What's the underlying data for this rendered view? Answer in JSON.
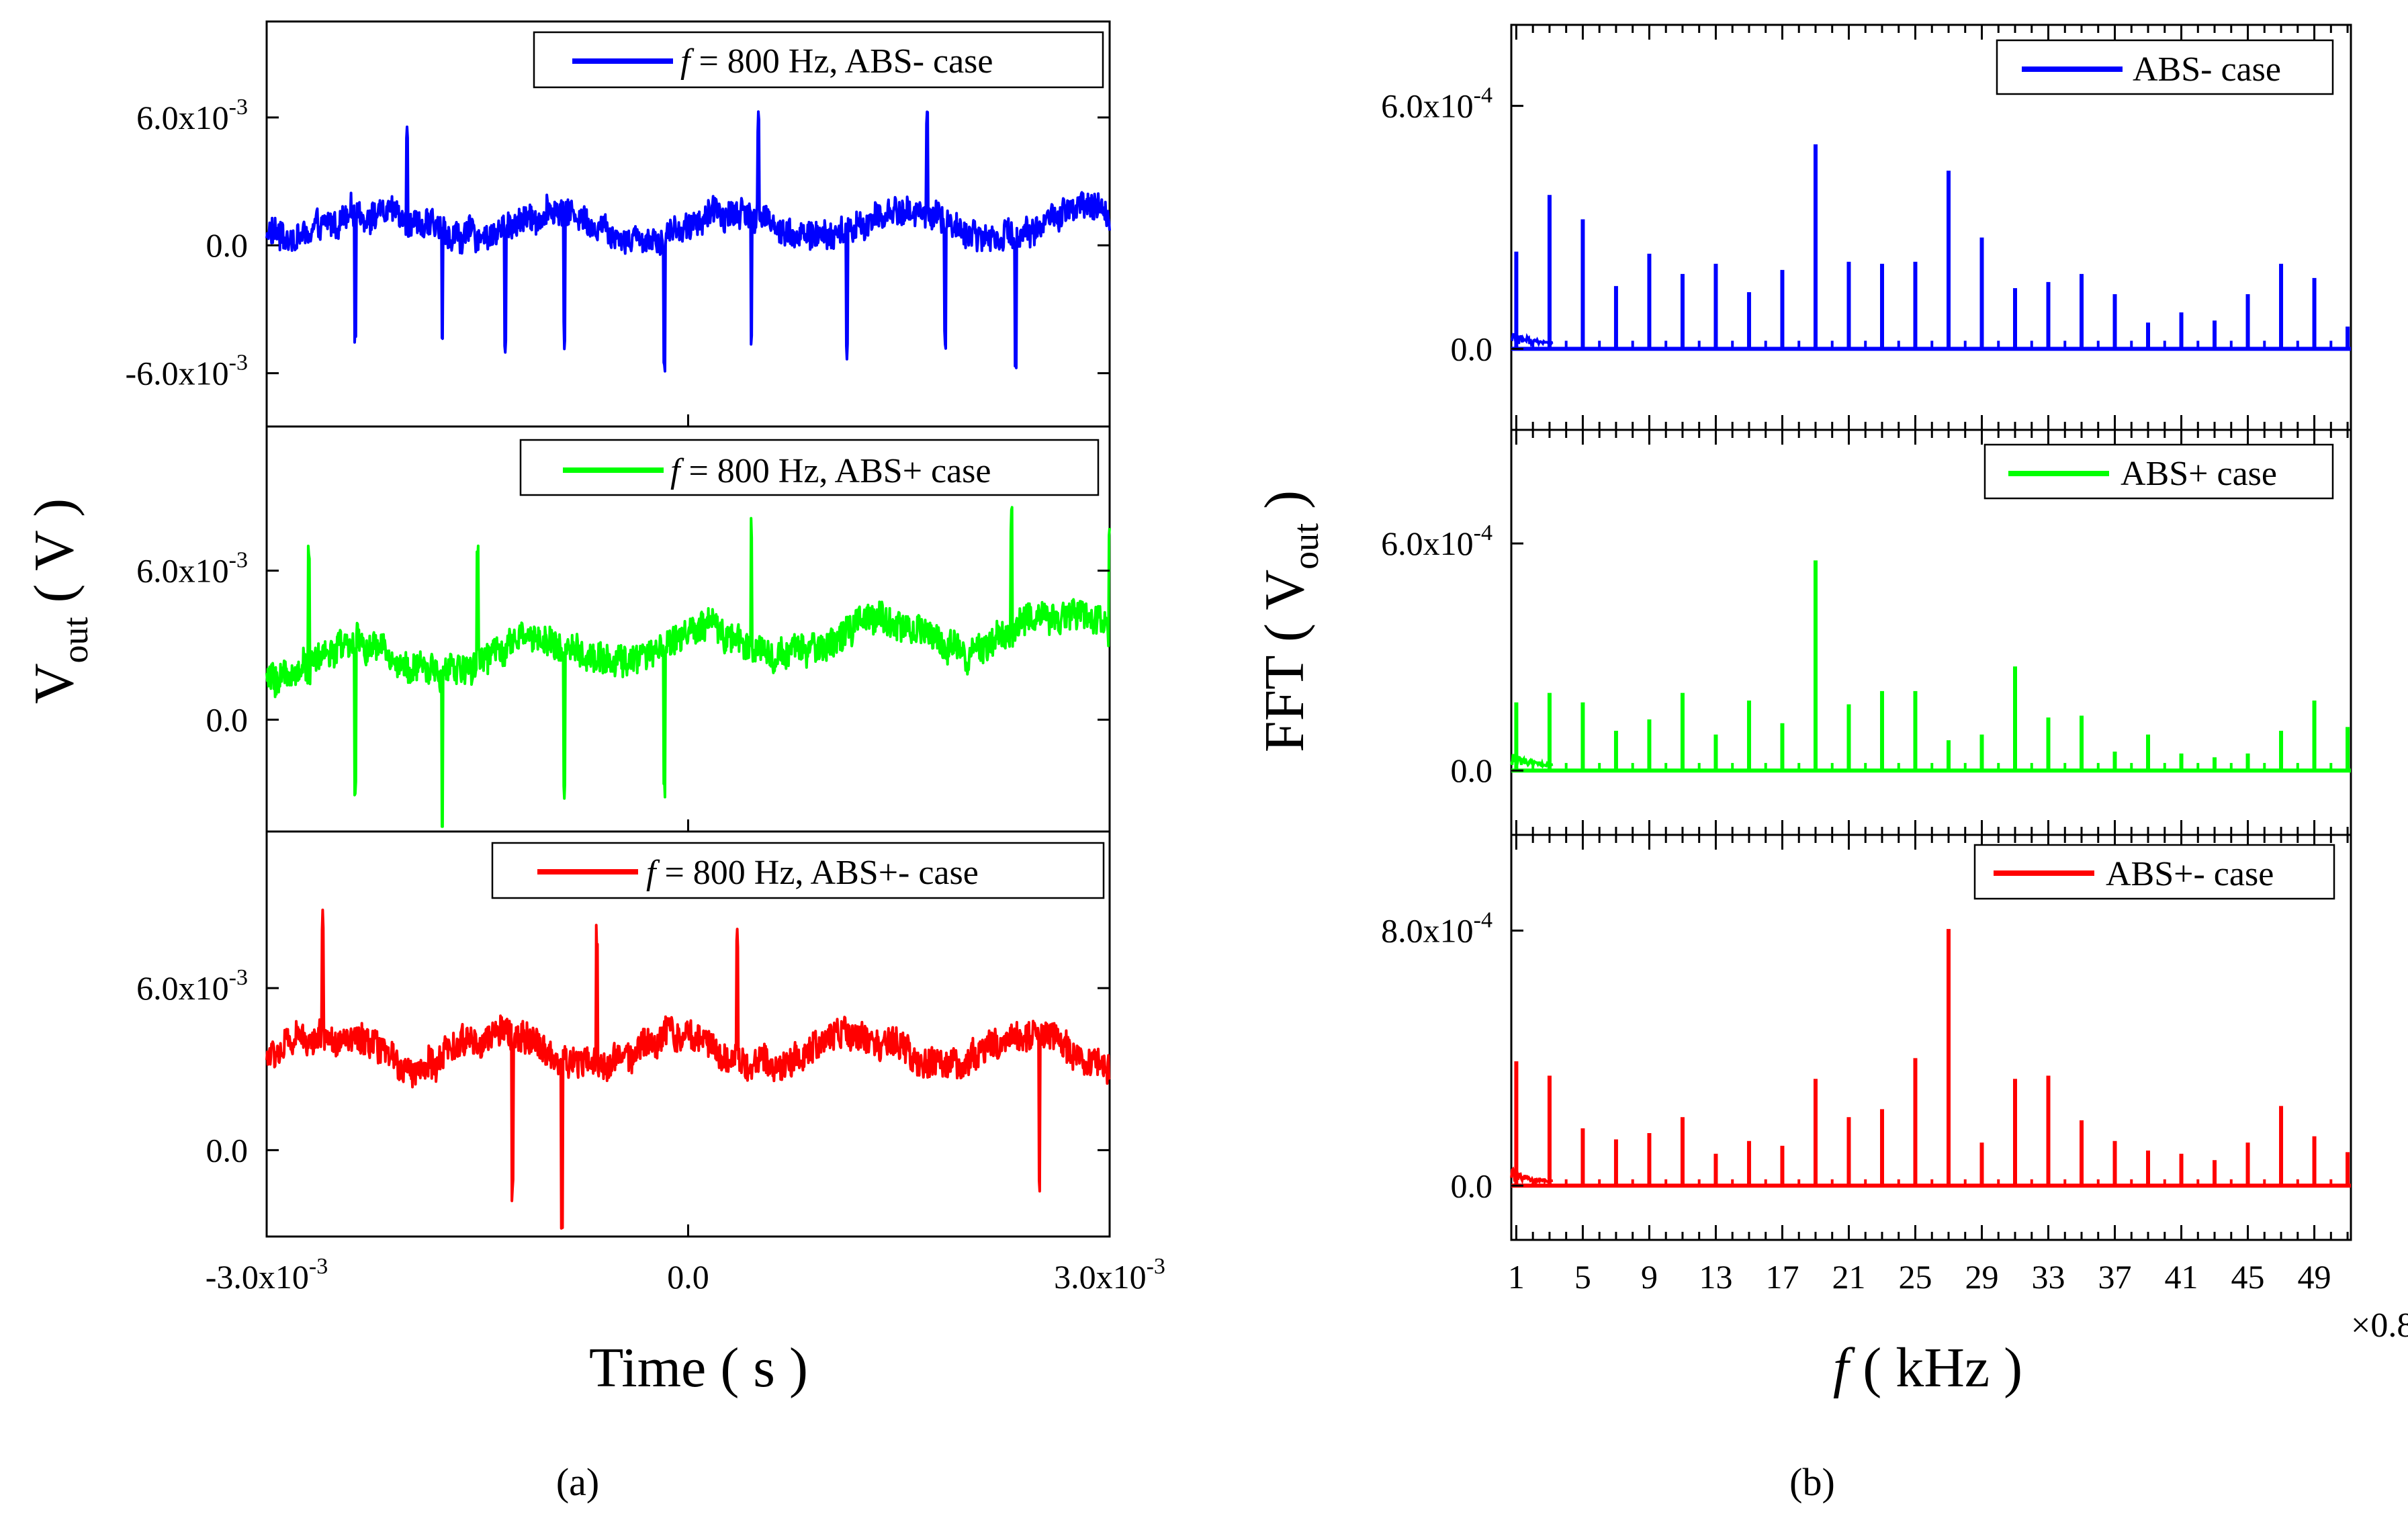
{
  "figure": {
    "caption_a": "(a)",
    "caption_b": "(b)"
  },
  "chart_data": [
    {
      "type": "line",
      "panel": "a",
      "xlabel": "Time ( s )",
      "ylabel": "V_out ( V )",
      "x_ticks": [
        -0.003,
        0.0,
        0.003
      ],
      "x_tick_labels": [
        "-3.0x10-3",
        "0.0",
        "3.0x10-3"
      ],
      "xlim": [
        -0.003,
        0.003
      ],
      "subplots": [
        {
          "legend": "f = 800 Hz, ABS- case",
          "legend_parts": {
            "italic": "f",
            "rest": " = 800 Hz, ABS- case"
          },
          "color": "#0000ff",
          "ylim": [
            -0.0085,
            0.0105
          ],
          "y_ticks": [
            -0.006,
            0.0,
            0.006
          ],
          "y_tick_labels": [
            "-6.0x10-3",
            "0.0",
            "6.0x10-3"
          ],
          "signal": {
            "baseline": 0.001,
            "drift": 0.0,
            "noise_amplitude": 0.0014,
            "dips": [
              -0.00237,
              -0.00175,
              -0.0013,
              -0.00088,
              -0.00017,
              0.00045,
              0.00113,
              0.00183,
              0.00233
            ],
            "peaks": [
              -0.002,
              0.0005,
              0.0017
            ]
          }
        },
        {
          "legend": "f = 800 Hz, ABS+ case",
          "legend_parts": {
            "italic": "f",
            "rest": " = 800 Hz, ABS+ case"
          },
          "color": "#00ff00",
          "ylim": [
            -0.0045,
            0.0118
          ],
          "y_ticks": [
            0.0,
            0.006
          ],
          "y_tick_labels": [
            "0.0",
            "6.0x10-3"
          ],
          "signal": {
            "baseline": 0.0022,
            "drift": 0.0016,
            "noise_amplitude": 0.0013,
            "dips": [
              -0.00237,
              -0.00175,
              -0.00088,
              -0.00017
            ],
            "peaks": [
              -0.0027,
              -0.0015,
              0.00045,
              0.0023,
              0.003
            ]
          }
        },
        {
          "legend": "f = 800 Hz, ABS+- case",
          "legend_parts": {
            "italic": "f",
            "rest": " = 800 Hz, ABS+- case"
          },
          "color": "#ff0000",
          "ylim": [
            -0.0032,
            0.0118
          ],
          "y_ticks": [
            0.0,
            0.006
          ],
          "y_tick_labels": [
            "0.0",
            "6.0x10-3"
          ],
          "signal": {
            "baseline": 0.0037,
            "drift": 0.0,
            "noise_amplitude": 0.0012,
            "dips": [
              -0.00125,
              -0.0009,
              0.0025
            ],
            "peaks": [
              -0.0026,
              -0.00065,
              0.00035
            ]
          }
        }
      ]
    },
    {
      "type": "bar",
      "panel": "b",
      "xlabel": "f ( kHz )",
      "xlabel_parts": {
        "italic": "f",
        "rest": " ( kHz )"
      },
      "ylabel": "FFT ( V_out )",
      "x_multiplier": "×0.8",
      "xlim": [
        0.7,
        51.2
      ],
      "x_ticks": [
        1,
        5,
        9,
        13,
        17,
        21,
        25,
        29,
        33,
        37,
        41,
        45,
        49
      ],
      "x_tick_labels": [
        "1",
        "5",
        "9",
        "13",
        "17",
        "21",
        "25",
        "29",
        "33",
        "37",
        "41",
        "45",
        "49"
      ],
      "subplots": [
        {
          "legend": "ABS- case",
          "color": "#0000ff",
          "ylim": [
            -0.0002,
            0.0008
          ],
          "y_ticks": [
            0.0,
            0.0006
          ],
          "y_tick_labels": [
            "0.0",
            "6.0x10-4"
          ],
          "harmonics": [
            1,
            3,
            5,
            7,
            9,
            11,
            13,
            15,
            17,
            19,
            21,
            23,
            25,
            27,
            29,
            31,
            33,
            35,
            37,
            39,
            41,
            43,
            45,
            47,
            49,
            51
          ],
          "values": [
            0.00024,
            0.00038,
            0.00032,
            0.000155,
            0.000235,
            0.000185,
            0.00021,
            0.00014,
            0.000195,
            0.000505,
            0.000215,
            0.00021,
            0.000215,
            0.00044,
            0.000275,
            0.00015,
            0.000165,
            0.000185,
            0.000135,
            6.5e-05,
            9e-05,
            7e-05,
            0.000135,
            0.00021,
            0.000175,
            5.5e-05
          ]
        },
        {
          "legend": "ABS+ case",
          "color": "#00ff00",
          "ylim": [
            -0.00017,
            0.0009
          ],
          "y_ticks": [
            0.0,
            0.0006
          ],
          "y_tick_labels": [
            "0.0",
            "6.0x10-4"
          ],
          "harmonics": [
            1,
            3,
            5,
            7,
            9,
            11,
            13,
            15,
            17,
            19,
            21,
            23,
            25,
            27,
            29,
            31,
            33,
            35,
            37,
            39,
            41,
            43,
            45,
            47,
            49,
            51
          ],
          "values": [
            0.00018,
            0.000205,
            0.00018,
            0.000105,
            0.000135,
            0.000205,
            9.5e-05,
            0.000185,
            0.000125,
            0.000555,
            0.000175,
            0.00021,
            0.00021,
            8e-05,
            9.5e-05,
            0.000275,
            0.00014,
            0.000145,
            5e-05,
            9.5e-05,
            4.5e-05,
            3.5e-05,
            4.5e-05,
            0.000105,
            0.000185,
            0.000115
          ]
        },
        {
          "legend": "ABS+- case",
          "color": "#ff0000",
          "ylim": [
            -0.00017,
            0.0011
          ],
          "y_ticks": [
            0.0,
            0.0008
          ],
          "y_tick_labels": [
            "0.0",
            "8.0x10-4"
          ],
          "harmonics": [
            1,
            3,
            5,
            7,
            9,
            11,
            13,
            15,
            17,
            19,
            21,
            23,
            25,
            27,
            29,
            31,
            33,
            35,
            37,
            39,
            41,
            43,
            45,
            47,
            49,
            51
          ],
          "values": [
            0.00039,
            0.000345,
            0.00018,
            0.000145,
            0.000165,
            0.000215,
            0.0001,
            0.00014,
            0.000125,
            0.000335,
            0.000215,
            0.00024,
            0.0004,
            0.000805,
            0.000135,
            0.000335,
            0.000345,
            0.000205,
            0.00014,
            0.00011,
            0.0001,
            8e-05,
            0.000135,
            0.00025,
            0.000155,
            0.000105
          ]
        }
      ]
    }
  ]
}
